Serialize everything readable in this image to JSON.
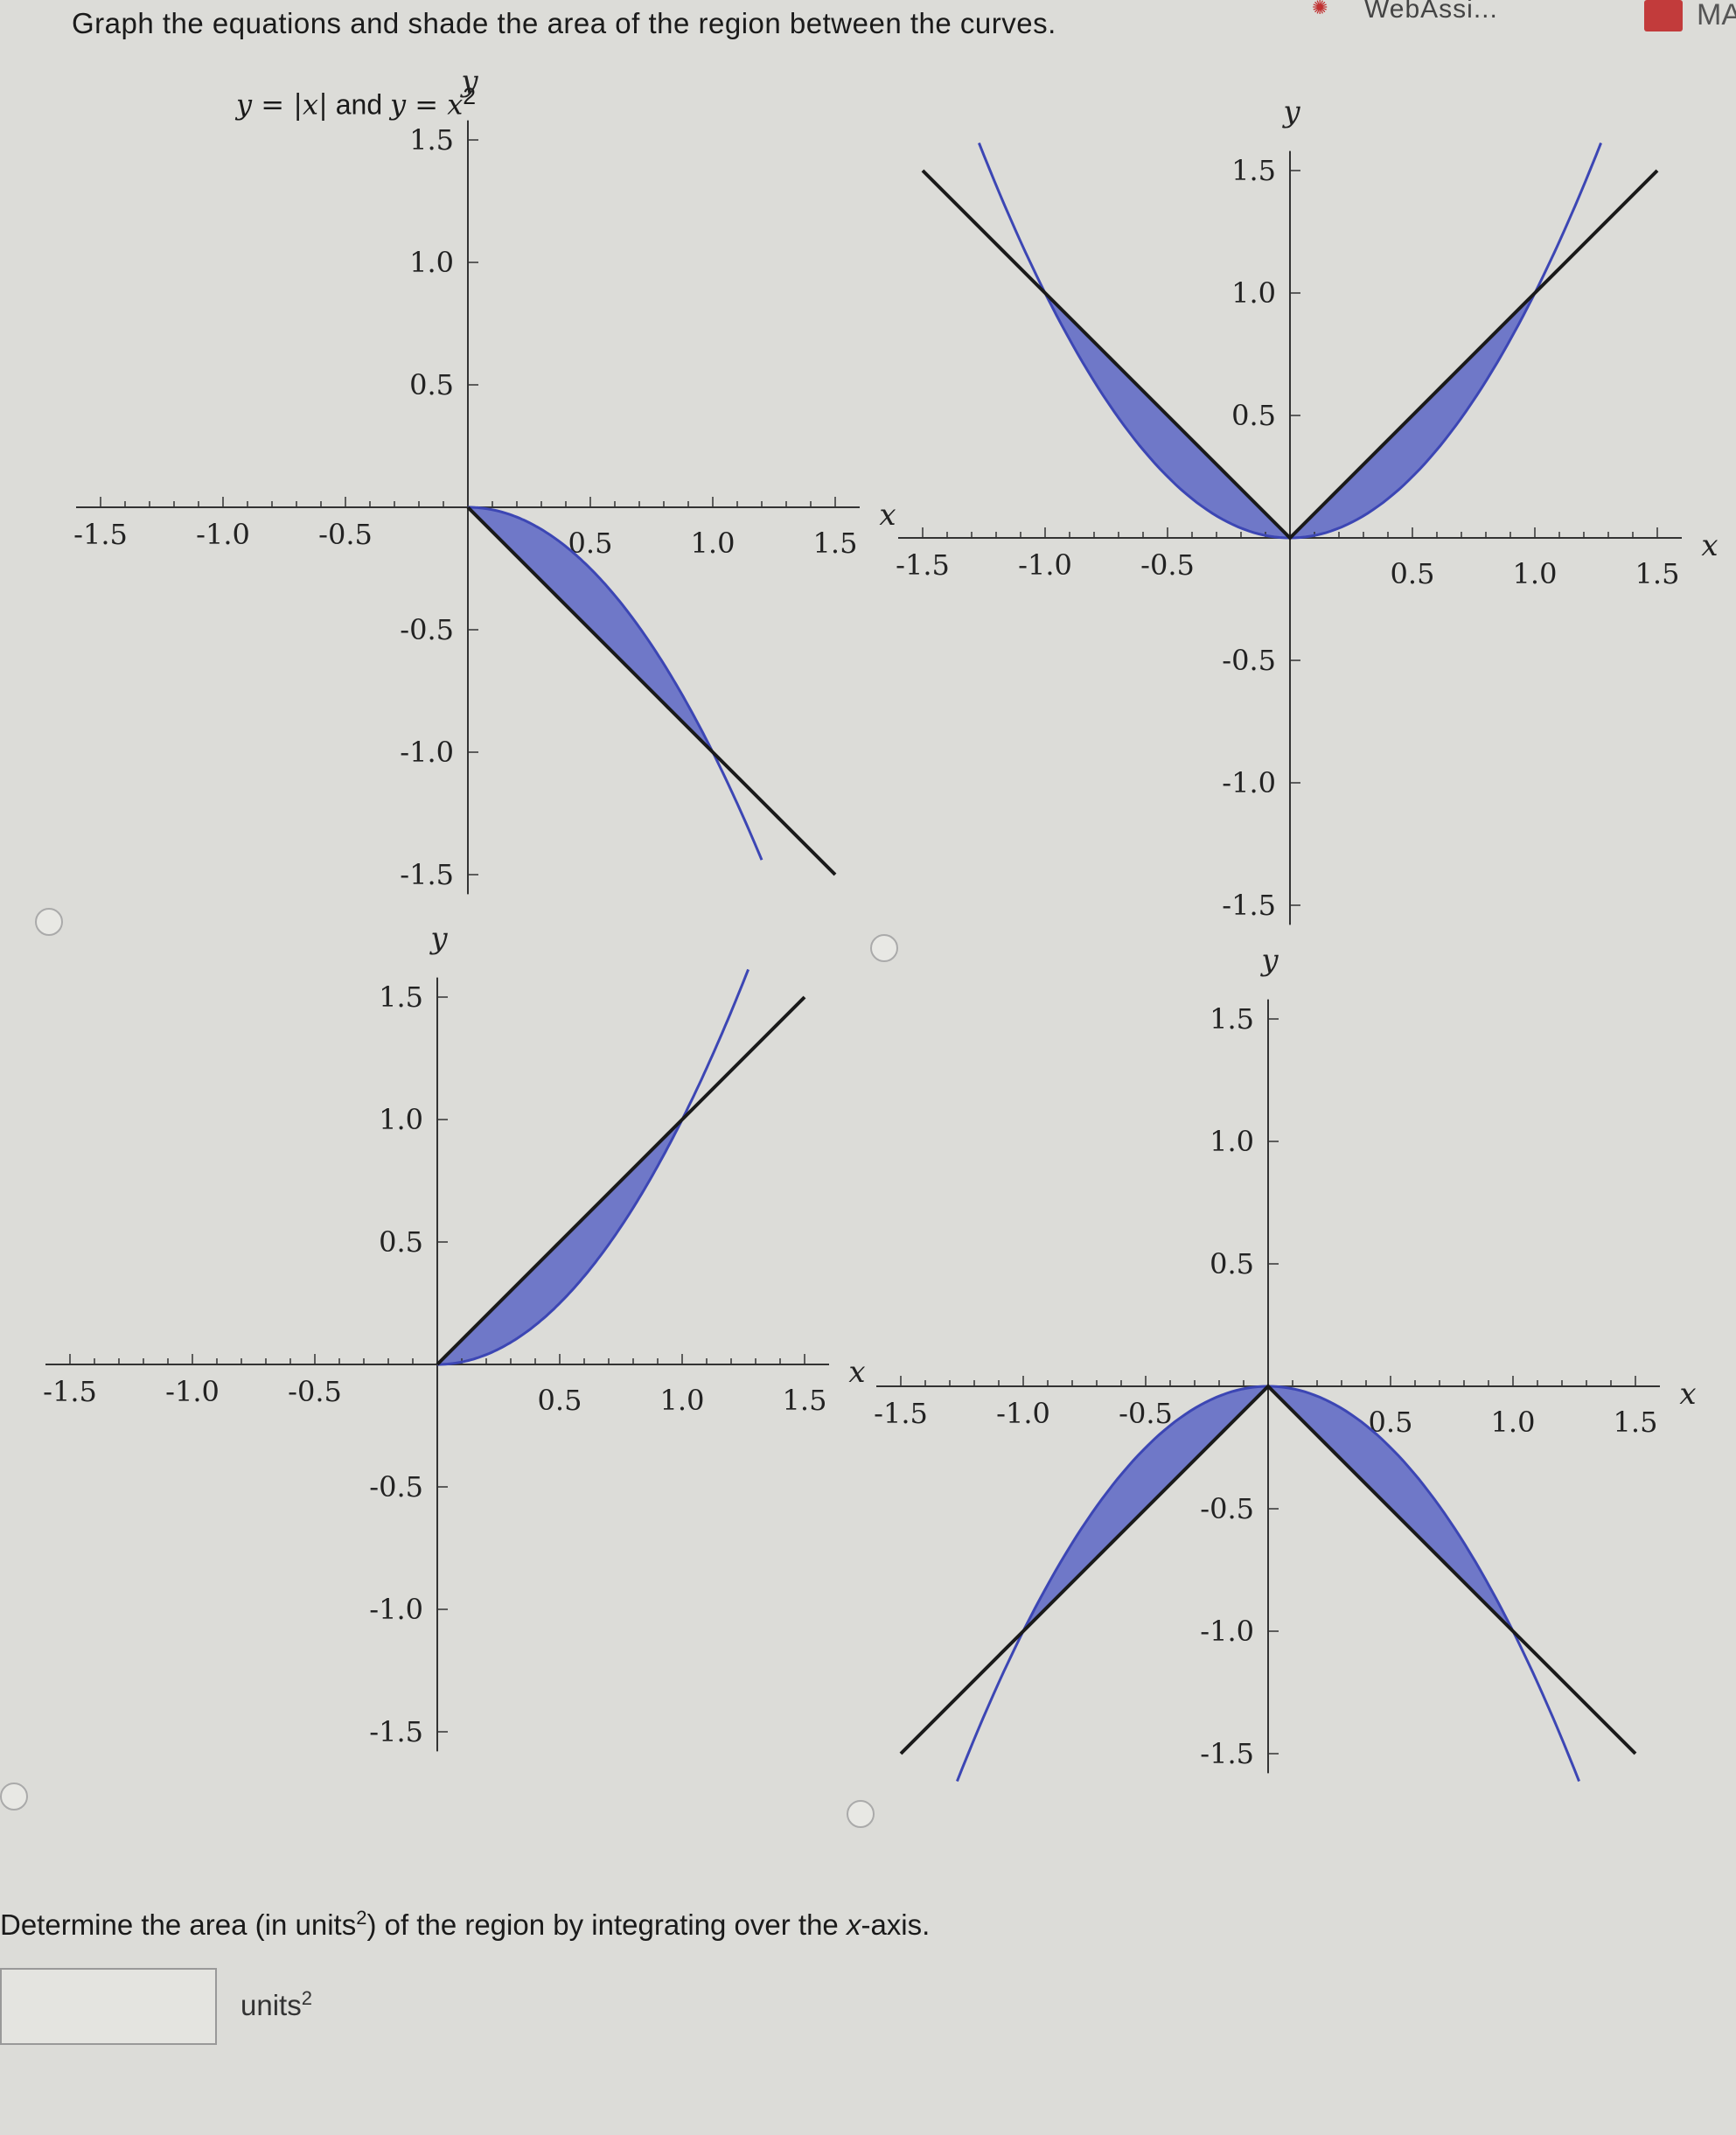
{
  "header": {
    "brand": "WebAssi...",
    "app_label": "MA"
  },
  "question": {
    "text": "Graph the equations and shade the area of the region between the curves.",
    "equation_left": "y = |x|",
    "equation_join": " and ",
    "equation_right": "y = x",
    "equation_right_exp": "2"
  },
  "graphs": [
    {
      "id": "A",
      "label": "option-a",
      "selected": false
    },
    {
      "id": "B",
      "label": "option-b",
      "selected": false
    },
    {
      "id": "C",
      "label": "option-c",
      "selected": false
    },
    {
      "id": "D",
      "label": "option-d",
      "selected": false
    }
  ],
  "axis_labels": {
    "x": "x",
    "y": "y"
  },
  "colors": {
    "shade": "#6f78c8",
    "shade_stroke": "#3c46b4",
    "line": "#1a1a1a",
    "axis": "#333333"
  },
  "chart_data": [
    {
      "type": "area",
      "curves": [
        "y = -x",
        "y = -x^2"
      ],
      "shaded_between_x": [
        0,
        1
      ],
      "xlim": [
        -1.5,
        1.5
      ],
      "ylim": [
        -1.5,
        1.5
      ],
      "x_ticks": [
        "-1.5",
        "-1.0",
        "-0.5",
        "0.5",
        "1.0",
        "1.5"
      ],
      "y_ticks": [
        "1.5",
        "1.0",
        "0.5",
        "-0.5",
        "-1.0",
        "-1.5"
      ]
    },
    {
      "type": "area",
      "curves": [
        "y = |x|",
        "y = x^2"
      ],
      "shaded_between_x": [
        -1,
        1
      ],
      "xlim": [
        -1.5,
        1.5
      ],
      "ylim": [
        -1.5,
        1.5
      ],
      "x_ticks": [
        "-1.5",
        "-1.0",
        "-0.5",
        "0.5",
        "1.0",
        "1.5"
      ],
      "y_ticks": [
        "1.5",
        "1.0",
        "0.5",
        "-0.5",
        "-1.0",
        "-1.5"
      ]
    },
    {
      "type": "area",
      "curves": [
        "y = x",
        "y = x^2"
      ],
      "shaded_between_x": [
        0,
        1
      ],
      "xlim": [
        -1.5,
        1.5
      ],
      "ylim": [
        -1.5,
        1.5
      ],
      "x_ticks": [
        "-1.5",
        "-1.0",
        "-0.5",
        "0.5",
        "1.0",
        "1.5"
      ],
      "y_ticks": [
        "1.5",
        "1.0",
        "0.5",
        "-0.5",
        "-1.0",
        "-1.5"
      ]
    },
    {
      "type": "area",
      "curves": [
        "y = -|x|",
        "y = -x^2"
      ],
      "shaded_between_x": [
        -1,
        1
      ],
      "xlim": [
        -1.5,
        1.5
      ],
      "ylim": [
        -1.5,
        1.5
      ],
      "x_ticks": [
        "-1.5",
        "-1.0",
        "-0.5",
        "0.5",
        "1.0",
        "1.5"
      ],
      "y_ticks": [
        "1.5",
        "1.0",
        "0.5",
        "-0.5",
        "-1.0",
        "-1.5"
      ]
    }
  ],
  "answer": {
    "prompt_before": "Determine the area (in units",
    "prompt_exp": "2",
    "prompt_after": ") of the region by integrating over the ",
    "prompt_var": "x",
    "prompt_end": "-axis.",
    "value": "",
    "units": "units",
    "units_exp": "2"
  }
}
